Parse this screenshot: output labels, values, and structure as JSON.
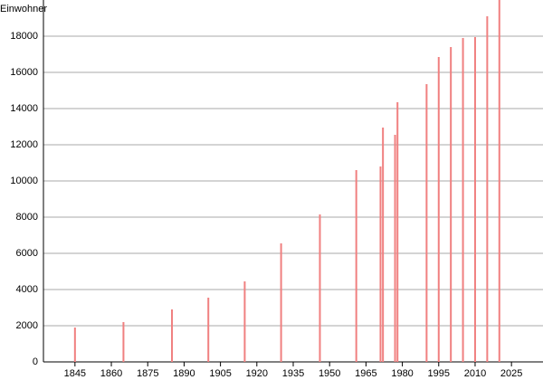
{
  "chart_data": {
    "type": "bar",
    "y_label": "Einwohner",
    "x": [
      1845,
      1865,
      1885,
      1900,
      1915,
      1930,
      1946,
      1961,
      1971,
      1972,
      1977,
      1978,
      1990,
      1995,
      2000,
      2005,
      2010,
      2015,
      2020
    ],
    "values": [
      1900,
      2200,
      2900,
      3550,
      4450,
      6550,
      8150,
      10600,
      10800,
      12950,
      12550,
      14350,
      15350,
      16850,
      17400,
      17900,
      17950,
      19100,
      20000
    ],
    "color": "#f08080",
    "xlim": [
      1832,
      2038
    ],
    "xticks": [
      1845,
      1860,
      1875,
      1890,
      1905,
      1920,
      1935,
      1950,
      1965,
      1980,
      1995,
      2010,
      2025
    ],
    "ylim": [
      0,
      20000
    ],
    "yticks": [
      0,
      2000,
      4000,
      6000,
      8000,
      10000,
      12000,
      14000,
      16000,
      18000
    ],
    "grid": true
  }
}
